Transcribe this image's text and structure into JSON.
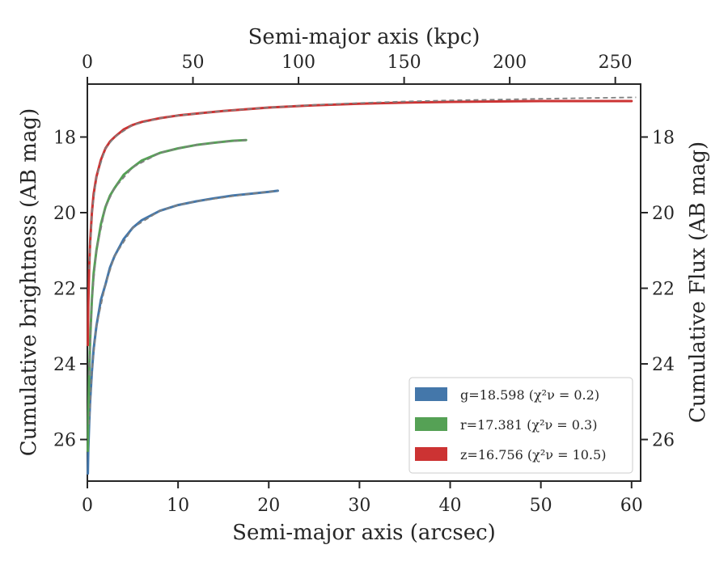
{
  "chart_data": {
    "type": "line",
    "xlabel_bottom": "Semi-major axis (arcsec)",
    "xlabel_top": "Semi-major axis (kpc)",
    "ylabel_left": "Cumulative brightness (AB mag)",
    "ylabel_right": "Cumulative Flux (AB mag)",
    "xlim": [
      0,
      61
    ],
    "ylim": [
      27.1,
      16.6
    ],
    "top_xlim_kpc": [
      0,
      262
    ],
    "y_inverted": true,
    "grid": false,
    "x_ticks": [
      0,
      10,
      20,
      30,
      40,
      50,
      60
    ],
    "x_tick_labels": [
      "0",
      "10",
      "20",
      "30",
      "40",
      "50",
      "60"
    ],
    "top_ticks": [
      0,
      50,
      100,
      150,
      200,
      250
    ],
    "top_tick_labels": [
      "0",
      "50",
      "100",
      "150",
      "200",
      "250"
    ],
    "y_ticks": [
      18,
      20,
      22,
      24,
      26
    ],
    "y_tick_labels": [
      "18",
      "20",
      "22",
      "24",
      "26"
    ],
    "legend_position": "lower-right",
    "series": [
      {
        "name": "g",
        "legend_text": "g=18.598",
        "chi_text": "χ²ν = 0.2",
        "color": "#4477aa",
        "x": [
          0.05,
          0.1,
          0.2,
          0.3,
          0.5,
          0.7,
          1,
          1.5,
          2,
          2.5,
          3,
          4,
          5,
          6,
          8,
          10,
          12,
          14,
          16,
          18,
          20,
          21.0
        ],
        "y": [
          26.9,
          26.3,
          25.6,
          25.0,
          24.2,
          23.6,
          23.0,
          22.3,
          21.9,
          21.45,
          21.15,
          20.7,
          20.4,
          20.2,
          19.95,
          19.8,
          19.7,
          19.62,
          19.55,
          19.5,
          19.45,
          19.42
        ]
      },
      {
        "name": "r",
        "legend_text": "r=17.381",
        "chi_text": "χ²ν = 0.3",
        "color": "#55a155",
        "x": [
          0.05,
          0.1,
          0.2,
          0.3,
          0.5,
          0.7,
          1,
          1.5,
          2,
          2.5,
          3,
          4,
          5,
          6,
          8,
          10,
          12,
          14,
          16,
          17.5
        ],
        "y": [
          26.3,
          25.4,
          24.3,
          23.4,
          22.3,
          21.6,
          21.0,
          20.3,
          19.85,
          19.55,
          19.35,
          19.0,
          18.8,
          18.62,
          18.42,
          18.3,
          18.21,
          18.15,
          18.1,
          18.08
        ]
      },
      {
        "name": "z",
        "legend_text": "z=16.756",
        "chi_text": "χ²ν = 10.5",
        "color": "#cc3333",
        "x": [
          0.05,
          0.1,
          0.2,
          0.3,
          0.5,
          0.7,
          1,
          1.5,
          2,
          2.5,
          3,
          4,
          5,
          6,
          8,
          10,
          12,
          15,
          20,
          25,
          30,
          35,
          40,
          45,
          50,
          55,
          60
        ],
        "y": [
          23.5,
          22.5,
          21.5,
          20.8,
          20.0,
          19.5,
          19.05,
          18.6,
          18.3,
          18.12,
          18.0,
          17.8,
          17.68,
          17.6,
          17.5,
          17.43,
          17.38,
          17.31,
          17.22,
          17.16,
          17.12,
          17.09,
          17.07,
          17.06,
          17.05,
          17.05,
          17.05
        ]
      }
    ],
    "model_series": [
      {
        "name": "g-model",
        "color": "#7f7f7f",
        "x": [
          0.2,
          0.5,
          1,
          2,
          3,
          5,
          8,
          10,
          12,
          15,
          18,
          21.0
        ],
        "y": [
          25.6,
          24.2,
          23.0,
          21.9,
          21.15,
          20.4,
          19.95,
          19.8,
          19.7,
          19.6,
          19.5,
          19.42
        ]
      },
      {
        "name": "r-model",
        "color": "#7f7f7f",
        "x": [
          0.2,
          0.5,
          1,
          2,
          3,
          5,
          8,
          10,
          12,
          15,
          17.5
        ],
        "y": [
          24.3,
          22.3,
          21.0,
          19.85,
          19.35,
          18.8,
          18.42,
          18.3,
          18.21,
          18.13,
          18.08
        ]
      },
      {
        "name": "z-model",
        "color": "#7f7f7f",
        "x": [
          0.2,
          0.5,
          1,
          2,
          3,
          5,
          8,
          10,
          15,
          20,
          25,
          30,
          35,
          40,
          45,
          50,
          55,
          60.5
        ],
        "y": [
          21.5,
          20.0,
          19.05,
          18.3,
          18.0,
          17.68,
          17.5,
          17.43,
          17.31,
          17.22,
          17.15,
          17.1,
          17.06,
          17.03,
          17.01,
          16.99,
          16.97,
          16.95
        ]
      }
    ]
  }
}
